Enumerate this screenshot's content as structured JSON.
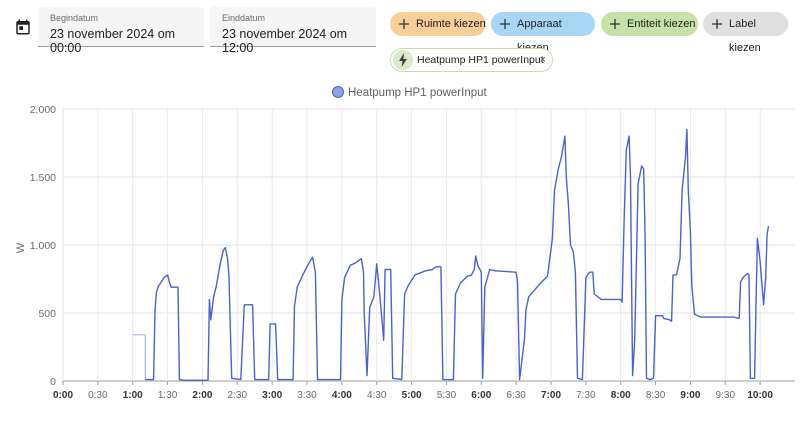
{
  "date_range": {
    "start_label": "Begindatum",
    "start_value": "23 november 2024 om 00:00",
    "end_label": "Einddatum",
    "end_value": "23 november 2024 om 12:00"
  },
  "target_chips": {
    "area": "Ruimte kiezen",
    "device": "Apparaat kiezen",
    "entity": "Entiteit kiezen",
    "label": "Label kiezen"
  },
  "selected_entity": {
    "name": "Heatpump HP1 powerInput",
    "remove_glyph": "×"
  },
  "icons": [
    "calendar-icon",
    "plus-icon",
    "lightning-bolt-icon",
    "close-icon"
  ],
  "colors": {
    "series": "#4a63c8",
    "chip_area": "#f8cf9a",
    "chip_device": "#a7d7f4",
    "chip_entity": "#c6e2a6",
    "chip_label": "#e0e0e0"
  },
  "chart_data": {
    "type": "line",
    "title": "",
    "xlabel": "",
    "ylabel": "W",
    "ylim": [
      0,
      2000
    ],
    "yticks": [
      0,
      500,
      1000,
      1500,
      2000
    ],
    "ytick_labels": [
      "0",
      "500",
      "1.000",
      "1.500",
      "2.000"
    ],
    "xlim": [
      0,
      10.5
    ],
    "xticks": [
      0,
      0.5,
      1,
      1.5,
      2,
      2.5,
      3,
      3.5,
      4,
      4.5,
      5,
      5.5,
      6,
      6.5,
      7,
      7.5,
      8,
      8.5,
      9,
      9.5,
      10
    ],
    "xtick_labels": [
      "0:00",
      "0:30",
      "1:00",
      "1:30",
      "2:00",
      "2:30",
      "3:00",
      "3:30",
      "4:00",
      "4:30",
      "5:00",
      "5:30",
      "6:00",
      "6:30",
      "7:00",
      "7:30",
      "8:00",
      "8:30",
      "9:00",
      "9:30",
      "10:00"
    ],
    "bold_ticks": [
      "1:00",
      "2:00",
      "3:00",
      "4:00",
      "5:00",
      "6:00",
      "7:00",
      "8:00",
      "9:00",
      "10:00"
    ],
    "grid": true,
    "legend": "top-center",
    "series": [
      {
        "name": "Heatpump HP1 powerInput",
        "pre_segment": [
          [
            1.0,
            340
          ],
          [
            1.18,
            340
          ],
          [
            1.18,
            10
          ]
        ],
        "points": [
          [
            1.18,
            10
          ],
          [
            1.3,
            10
          ],
          [
            1.32,
            520
          ],
          [
            1.34,
            650
          ],
          [
            1.37,
            700
          ],
          [
            1.4,
            720
          ],
          [
            1.45,
            760
          ],
          [
            1.5,
            780
          ],
          [
            1.52,
            740
          ],
          [
            1.55,
            690
          ],
          [
            1.65,
            690
          ],
          [
            1.67,
            10
          ],
          [
            1.75,
            5
          ],
          [
            2.08,
            5
          ],
          [
            2.1,
            600
          ],
          [
            2.12,
            450
          ],
          [
            2.16,
            620
          ],
          [
            2.2,
            700
          ],
          [
            2.25,
            850
          ],
          [
            2.3,
            960
          ],
          [
            2.33,
            980
          ],
          [
            2.36,
            900
          ],
          [
            2.38,
            780
          ],
          [
            2.42,
            20
          ],
          [
            2.55,
            10
          ],
          [
            2.6,
            560
          ],
          [
            2.72,
            560
          ],
          [
            2.75,
            10
          ],
          [
            2.95,
            10
          ],
          [
            2.97,
            420
          ],
          [
            3.05,
            420
          ],
          [
            3.08,
            10
          ],
          [
            3.3,
            10
          ],
          [
            3.32,
            550
          ],
          [
            3.36,
            690
          ],
          [
            3.45,
            790
          ],
          [
            3.52,
            860
          ],
          [
            3.58,
            910
          ],
          [
            3.62,
            800
          ],
          [
            3.65,
            10
          ],
          [
            3.98,
            10
          ],
          [
            4.0,
            600
          ],
          [
            4.04,
            760
          ],
          [
            4.12,
            850
          ],
          [
            4.2,
            870
          ],
          [
            4.28,
            900
          ],
          [
            4.31,
            800
          ],
          [
            4.32,
            500
          ],
          [
            4.36,
            40
          ],
          [
            4.4,
            540
          ],
          [
            4.46,
            620
          ],
          [
            4.5,
            860
          ],
          [
            4.55,
            600
          ],
          [
            4.6,
            300
          ],
          [
            4.62,
            820
          ],
          [
            4.7,
            820
          ],
          [
            4.73,
            20
          ],
          [
            4.86,
            10
          ],
          [
            4.9,
            640
          ],
          [
            4.95,
            700
          ],
          [
            5.05,
            780
          ],
          [
            5.15,
            800
          ],
          [
            5.2,
            810
          ],
          [
            5.3,
            820
          ],
          [
            5.35,
            840
          ],
          [
            5.42,
            840
          ],
          [
            5.45,
            10
          ],
          [
            5.6,
            10
          ],
          [
            5.63,
            640
          ],
          [
            5.7,
            720
          ],
          [
            5.8,
            770
          ],
          [
            5.86,
            780
          ],
          [
            5.9,
            820
          ],
          [
            5.92,
            920
          ],
          [
            5.95,
            850
          ],
          [
            6.0,
            800
          ],
          [
            6.02,
            20
          ],
          [
            6.05,
            690
          ],
          [
            6.12,
            820
          ],
          [
            6.2,
            810
          ],
          [
            6.5,
            800
          ],
          [
            6.52,
            730
          ],
          [
            6.55,
            10
          ],
          [
            6.62,
            310
          ],
          [
            6.64,
            520
          ],
          [
            6.68,
            620
          ],
          [
            6.75,
            660
          ],
          [
            6.85,
            720
          ],
          [
            6.95,
            770
          ],
          [
            7.02,
            1050
          ],
          [
            7.05,
            1400
          ],
          [
            7.1,
            1550
          ],
          [
            7.15,
            1650
          ],
          [
            7.2,
            1800
          ],
          [
            7.22,
            1500
          ],
          [
            7.25,
            1300
          ],
          [
            7.28,
            1000
          ],
          [
            7.32,
            950
          ],
          [
            7.35,
            800
          ],
          [
            7.38,
            20
          ],
          [
            7.45,
            10
          ],
          [
            7.5,
            760
          ],
          [
            7.55,
            800
          ],
          [
            7.6,
            800
          ],
          [
            7.62,
            640
          ],
          [
            7.72,
            600
          ],
          [
            8.0,
            600
          ],
          [
            8.02,
            580
          ],
          [
            8.05,
            1200
          ],
          [
            8.08,
            1700
          ],
          [
            8.12,
            1800
          ],
          [
            8.14,
            1500
          ],
          [
            8.15,
            1000
          ],
          [
            8.17,
            40
          ],
          [
            8.2,
            300
          ],
          [
            8.25,
            1450
          ],
          [
            8.3,
            1580
          ],
          [
            8.33,
            1560
          ],
          [
            8.35,
            1050
          ],
          [
            8.37,
            20
          ],
          [
            8.42,
            10
          ],
          [
            8.47,
            20
          ],
          [
            8.5,
            480
          ],
          [
            8.6,
            480
          ],
          [
            8.62,
            460
          ],
          [
            8.7,
            450
          ],
          [
            8.73,
            440
          ],
          [
            8.75,
            780
          ],
          [
            8.8,
            780
          ],
          [
            8.85,
            900
          ],
          [
            8.88,
            1400
          ],
          [
            8.93,
            1650
          ],
          [
            8.95,
            1850
          ],
          [
            8.97,
            1400
          ],
          [
            9.0,
            1100
          ],
          [
            9.02,
            700
          ],
          [
            9.06,
            490
          ],
          [
            9.15,
            470
          ],
          [
            9.3,
            470
          ],
          [
            9.58,
            470
          ],
          [
            9.62,
            470
          ],
          [
            9.7,
            460
          ],
          [
            9.72,
            730
          ],
          [
            9.77,
            770
          ],
          [
            9.82,
            790
          ],
          [
            9.84,
            780
          ],
          [
            9.86,
            20
          ],
          [
            9.92,
            20
          ],
          [
            9.94,
            560
          ],
          [
            9.96,
            1050
          ],
          [
            10.0,
            880
          ],
          [
            10.05,
            560
          ],
          [
            10.08,
            760
          ],
          [
            10.1,
            1080
          ],
          [
            10.12,
            1140
          ]
        ]
      }
    ]
  }
}
